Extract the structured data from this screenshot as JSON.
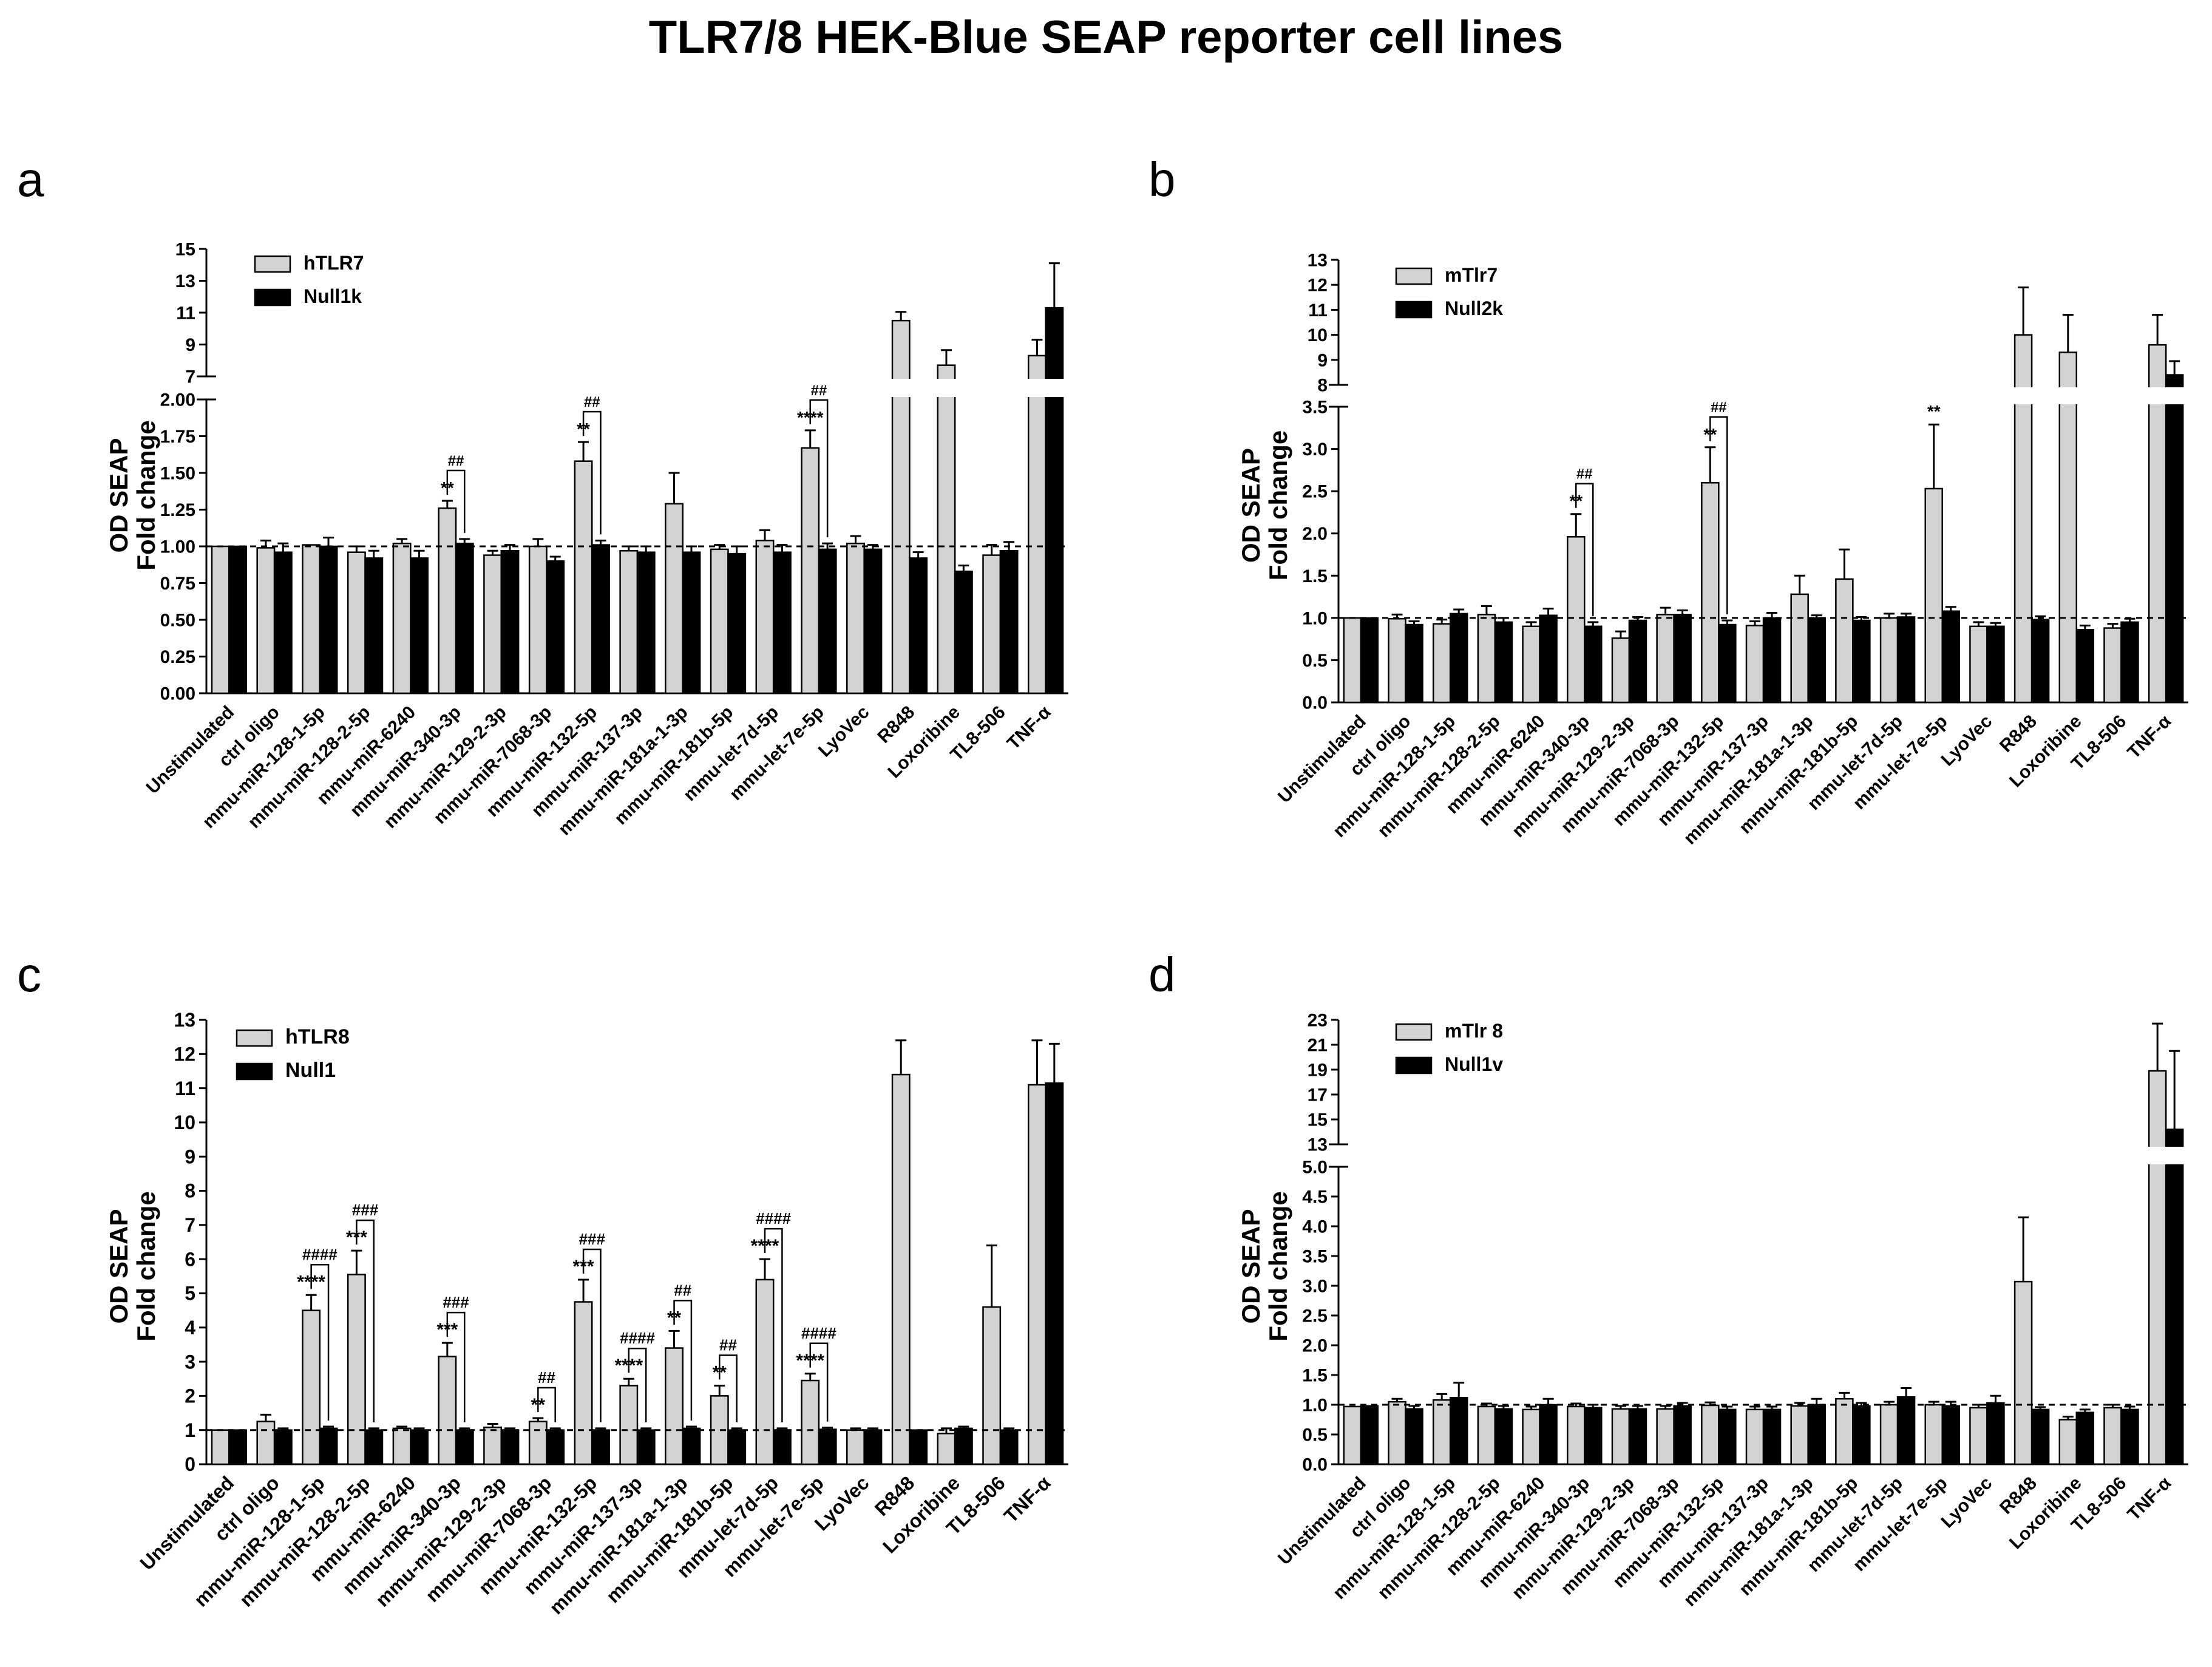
{
  "figure": {
    "title": "TLR7/8 HEK-Blue SEAP reporter cell lines",
    "bar_colors": {
      "primary": "#d3d3d3",
      "control": "#000000",
      "outline": "#000000"
    }
  },
  "chart_data": [
    {
      "panel": "a",
      "type": "bar",
      "ylabel": [
        "OD SEAP",
        "Fold change"
      ],
      "categories": [
        "Unstimulated",
        "ctrl oligo",
        "mmu-miR-128-1-5p",
        "mmu-miR-128-2-5p",
        "mmu-miR-6240",
        "mmu-miR-340-3p",
        "mmu-miR-129-2-3p",
        "mmu-miR-7068-3p",
        "mmu-miR-132-5p",
        "mmu-miR-137-3p",
        "mmu-miR-181a-1-3p",
        "mmu-miR-181b-5p",
        "mmu-let-7d-5p",
        "mmu-let-7e-5p",
        "LyoVec",
        "R848",
        "Loxoribine",
        "TL8-506",
        "TNF-α"
      ],
      "series": [
        {
          "name": "hTLR7",
          "values": [
            1.0,
            0.99,
            1.01,
            0.96,
            1.02,
            1.26,
            0.94,
            1.0,
            1.58,
            0.97,
            1.29,
            0.98,
            1.04,
            1.67,
            1.02,
            10.5,
            7.7,
            0.94,
            8.3
          ],
          "errors": [
            0.0,
            0.05,
            0.0,
            0.04,
            0.03,
            0.05,
            0.03,
            0.05,
            0.13,
            0.03,
            0.21,
            0.03,
            0.07,
            0.12,
            0.05,
            0.55,
            0.95,
            0.07,
            1.0
          ]
        },
        {
          "name": "Null1k",
          "values": [
            1.0,
            0.96,
            1.0,
            0.92,
            0.92,
            1.02,
            0.97,
            0.9,
            1.01,
            0.96,
            0.96,
            0.95,
            0.96,
            0.98,
            0.98,
            0.92,
            0.83,
            0.97,
            11.3
          ],
          "errors": [
            0.0,
            0.06,
            0.06,
            0.05,
            0.05,
            0.03,
            0.04,
            0.03,
            0.03,
            0.04,
            0.04,
            0.05,
            0.05,
            0.04,
            0.03,
            0.04,
            0.04,
            0.06,
            2.8
          ]
        }
      ],
      "axis": {
        "lower_range": [
          0,
          2
        ],
        "lower_ticks": [
          0,
          0.25,
          0.5,
          0.75,
          1.0,
          1.25,
          1.5,
          1.75,
          2.0
        ],
        "lower_tick_labels": [
          "0.00",
          "0.25",
          "0.50",
          "0.75",
          "1.00",
          "1.25",
          "1.50",
          "1.75",
          "2.00"
        ],
        "upper_range": [
          7,
          15
        ],
        "upper_ticks": [
          7,
          9,
          11,
          13,
          15
        ],
        "upper_tick_labels": [
          "7",
          "9",
          "11",
          "13",
          "15"
        ],
        "reference_line": 1
      },
      "annotations": [
        {
          "category": 5,
          "star": "**",
          "hash": "##"
        },
        {
          "category": 8,
          "star": "**",
          "hash": "##"
        },
        {
          "category": 13,
          "star": "****",
          "hash": "##"
        }
      ],
      "legend": {
        "position": "top-left"
      }
    },
    {
      "panel": "b",
      "type": "bar",
      "ylabel": [
        "OD SEAP",
        "Fold change"
      ],
      "categories": [
        "Unstimulated",
        "ctrl oligo",
        "mmu-miR-128-1-5p",
        "mmu-miR-128-2-5p",
        "mmu-miR-6240",
        "mmu-miR-340-3p",
        "mmu-miR-129-2-3p",
        "mmu-miR-7068-3p",
        "mmu-miR-132-5p",
        "mmu-miR-137-3p",
        "mmu-miR-181a-1-3p",
        "mmu-miR-181b-5p",
        "mmu-let-7d-5p",
        "mmu-let-7e-5p",
        "LyoVec",
        "R848",
        "Loxoribine",
        "TL8-506",
        "TNF-α"
      ],
      "series": [
        {
          "name": "mTlr7",
          "values": [
            1.0,
            0.99,
            0.93,
            1.04,
            0.9,
            1.96,
            0.76,
            1.04,
            2.6,
            0.91,
            1.28,
            1.46,
            1.0,
            2.53,
            0.9,
            10.0,
            9.3,
            0.88,
            9.6
          ],
          "errors": [
            0.0,
            0.05,
            0.05,
            0.1,
            0.05,
            0.27,
            0.08,
            0.08,
            0.42,
            0.05,
            0.22,
            0.35,
            0.05,
            0.76,
            0.05,
            1.9,
            1.5,
            0.05,
            1.2
          ]
        },
        {
          "name": "Null2k",
          "values": [
            1.0,
            0.92,
            1.05,
            0.95,
            1.03,
            0.9,
            0.97,
            1.04,
            0.92,
            1.0,
            1.0,
            0.97,
            1.01,
            1.08,
            0.9,
            0.98,
            0.86,
            0.95,
            8.4
          ],
          "errors": [
            0.0,
            0.04,
            0.05,
            0.05,
            0.08,
            0.05,
            0.04,
            0.05,
            0.05,
            0.06,
            0.03,
            0.04,
            0.04,
            0.05,
            0.04,
            0.04,
            0.05,
            0.04,
            0.55
          ]
        }
      ],
      "axis": {
        "lower_range": [
          0,
          3.5
        ],
        "lower_ticks": [
          0,
          0.5,
          1.0,
          1.5,
          2.0,
          2.5,
          3.0,
          3.5
        ],
        "lower_tick_labels": [
          "0.0",
          "0.5",
          "1.0",
          "1.5",
          "2.0",
          "2.5",
          "3.0",
          "3.5"
        ],
        "upper_range": [
          8,
          13
        ],
        "upper_ticks": [
          8,
          9,
          10,
          11,
          12,
          13
        ],
        "upper_tick_labels": [
          "8",
          "9",
          "10",
          "11",
          "12",
          "13"
        ],
        "reference_line": 1
      },
      "annotations": [
        {
          "category": 5,
          "star": "**",
          "hash": "##"
        },
        {
          "category": 8,
          "star": "**",
          "hash": "##"
        },
        {
          "category": 13,
          "star": "**",
          "hash": ""
        }
      ],
      "legend": {
        "position": "top-left"
      }
    },
    {
      "panel": "c",
      "type": "bar",
      "ylabel": [
        "OD SEAP",
        "Fold change"
      ],
      "categories": [
        "Unstimulated",
        "ctrl oligo",
        "mmu-miR-128-1-5p",
        "mmu-miR-128-2-5p",
        "mmu-miR-6240",
        "mmu-miR-340-3p",
        "mmu-miR-129-2-3p",
        "mmu-miR-7068-3p",
        "mmu-miR-132-5p",
        "mmu-miR-137-3p",
        "mmu-miR-181a-1-3p",
        "mmu-miR-181b-5p",
        "mmu-let-7d-5p",
        "mmu-let-7e-5p",
        "LyoVec",
        "R848",
        "Loxoribine",
        "TL8-506",
        "TNF-α"
      ],
      "series": [
        {
          "name": "hTLR8",
          "values": [
            1.0,
            1.25,
            4.5,
            5.55,
            1.05,
            3.15,
            1.08,
            1.25,
            4.75,
            2.3,
            3.4,
            2.0,
            5.4,
            2.45,
            1.0,
            11.4,
            0.9,
            4.6,
            11.1
          ],
          "errors": [
            0.0,
            0.2,
            0.45,
            0.7,
            0.05,
            0.4,
            0.1,
            0.1,
            0.65,
            0.2,
            0.5,
            0.3,
            0.6,
            0.2,
            0.05,
            1.0,
            0.15,
            1.8,
            1.3
          ]
        },
        {
          "name": "Null1",
          "values": [
            1.0,
            1.0,
            1.05,
            1.0,
            1.0,
            1.0,
            1.0,
            1.0,
            1.0,
            1.0,
            1.05,
            1.0,
            1.0,
            1.02,
            1.0,
            1.0,
            1.05,
            1.0,
            11.15
          ],
          "errors": [
            0.0,
            0.05,
            0.05,
            0.05,
            0.05,
            0.05,
            0.05,
            0.05,
            0.05,
            0.05,
            0.05,
            0.05,
            0.05,
            0.05,
            0.05,
            0.0,
            0.05,
            0.05,
            1.15
          ]
        }
      ],
      "axis": {
        "lower_range": [
          0,
          13
        ],
        "lower_ticks": [
          0,
          1,
          2,
          3,
          4,
          5,
          6,
          7,
          8,
          9,
          10,
          11,
          12,
          13
        ],
        "lower_tick_labels": [
          "0",
          "1",
          "2",
          "3",
          "4",
          "5",
          "6",
          "7",
          "8",
          "9",
          "10",
          "11",
          "12",
          "13"
        ],
        "reference_line": 1
      },
      "annotations": [
        {
          "category": 2,
          "star": "****",
          "hash": "####"
        },
        {
          "category": 3,
          "star": "***",
          "hash": "###"
        },
        {
          "category": 5,
          "star": "***",
          "hash": "###"
        },
        {
          "category": 7,
          "star": "**",
          "hash": "##"
        },
        {
          "category": 8,
          "star": "***",
          "hash": "###"
        },
        {
          "category": 9,
          "star": "****",
          "hash": "####"
        },
        {
          "category": 10,
          "star": "**",
          "hash": "##"
        },
        {
          "category": 11,
          "star": "**",
          "hash": "##"
        },
        {
          "category": 12,
          "star": "****",
          "hash": "####"
        },
        {
          "category": 13,
          "star": "****",
          "hash": "####"
        }
      ],
      "legend": {
        "position": "top-left"
      }
    },
    {
      "panel": "d",
      "type": "bar",
      "ylabel": [
        "OD SEAP",
        "Fold change"
      ],
      "categories": [
        "Unstimulated",
        "ctrl oligo",
        "mmu-miR-128-1-5p",
        "mmu-miR-128-2-5p",
        "mmu-miR-6240",
        "mmu-miR-340-3p",
        "mmu-miR-129-2-3p",
        "mmu-miR-7068-3p",
        "mmu-miR-132-5p",
        "mmu-miR-137-3p",
        "mmu-miR-181a-1-3p",
        "mmu-miR-181b-5p",
        "mmu-let-7d-5p",
        "mmu-let-7e-5p",
        "LyoVec",
        "R848",
        "Loxoribine",
        "TL8-506",
        "TNF-α"
      ],
      "series": [
        {
          "name": "mTlr 8",
          "values": [
            0.97,
            1.05,
            1.08,
            0.97,
            0.92,
            0.97,
            0.93,
            0.93,
            0.99,
            0.92,
            0.98,
            1.1,
            1.0,
            1.0,
            0.95,
            3.07,
            0.75,
            0.95,
            18.9
          ],
          "errors": [
            0.0,
            0.05,
            0.1,
            0.05,
            0.05,
            0.05,
            0.05,
            0.05,
            0.05,
            0.05,
            0.05,
            0.1,
            0.05,
            0.05,
            0.05,
            1.08,
            0.05,
            0.05,
            3.8
          ]
        },
        {
          "name": "Null1v",
          "values": [
            0.98,
            0.93,
            1.12,
            0.93,
            1.0,
            0.95,
            0.93,
            0.98,
            0.92,
            0.92,
            1.0,
            0.98,
            1.13,
            0.98,
            1.03,
            0.92,
            0.87,
            0.92,
            14.2
          ],
          "errors": [
            0.0,
            0.05,
            0.25,
            0.05,
            0.1,
            0.05,
            0.05,
            0.05,
            0.05,
            0.05,
            0.1,
            0.05,
            0.15,
            0.07,
            0.12,
            0.04,
            0.05,
            0.05,
            6.3
          ]
        }
      ],
      "axis": {
        "lower_range": [
          0,
          5
        ],
        "lower_ticks": [
          0,
          0.5,
          1.0,
          1.5,
          2.0,
          2.5,
          3.0,
          3.5,
          4.0,
          4.5,
          5.0
        ],
        "lower_tick_labels": [
          "0.0",
          "0.5",
          "1.0",
          "1.5",
          "2.0",
          "2.5",
          "3.0",
          "3.5",
          "4.0",
          "4.5",
          "5.0"
        ],
        "upper_range": [
          13,
          23
        ],
        "upper_ticks": [
          13,
          15,
          17,
          19,
          21,
          23
        ],
        "upper_tick_labels": [
          "13",
          "15",
          "17",
          "19",
          "21",
          "23"
        ],
        "reference_line": 1
      },
      "annotations": [],
      "legend": {
        "position": "top-left"
      }
    }
  ]
}
